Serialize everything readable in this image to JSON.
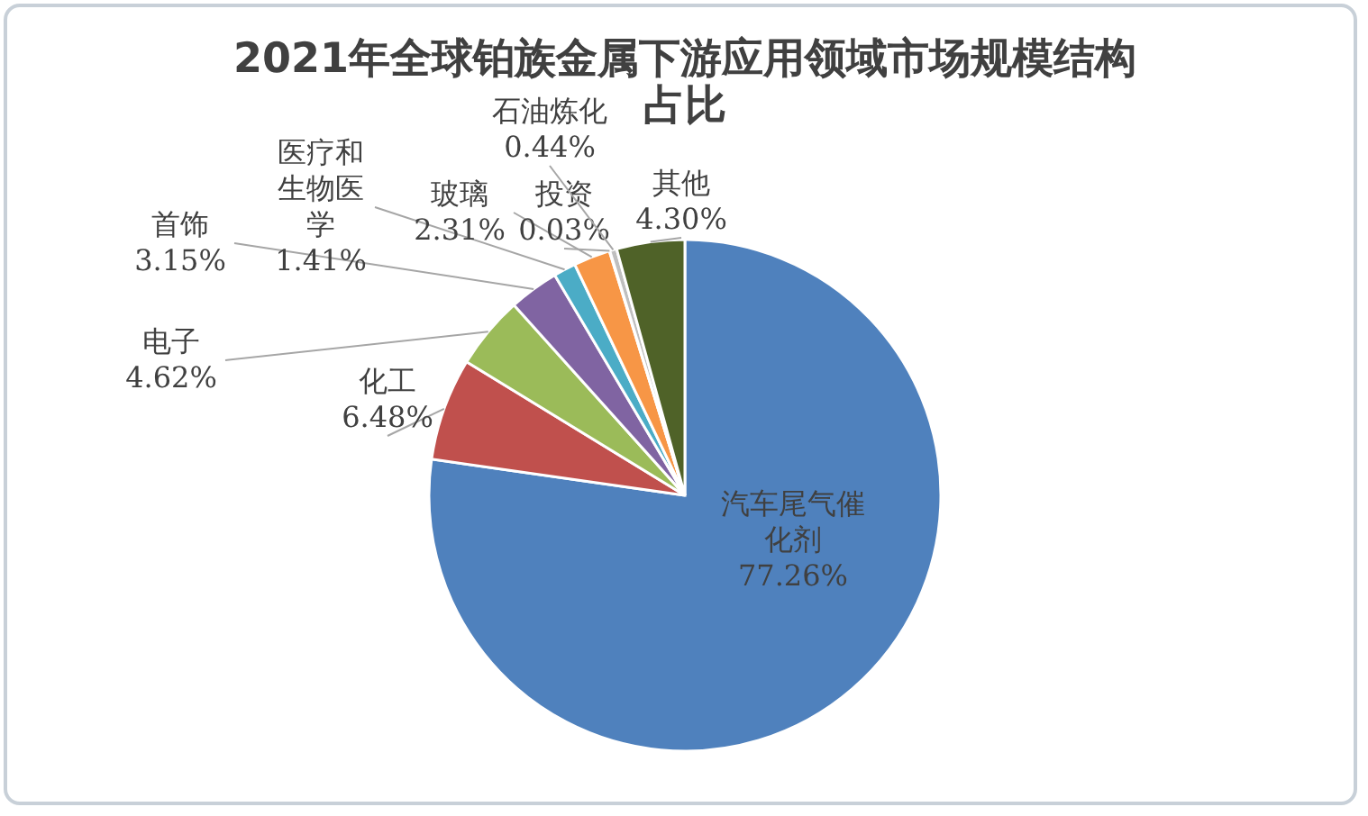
{
  "chart_data": {
    "type": "pie",
    "title": "2021年全球铂族金属下游应用领域市场规模结构占比",
    "categories": [
      "汽车尾气催化剂",
      "化工",
      "电子",
      "首饰",
      "医疗和生物医学",
      "玻璃",
      "投资",
      "石油炼化",
      "其他"
    ],
    "values": [
      77.26,
      6.48,
      4.62,
      3.15,
      1.41,
      2.31,
      0.03,
      0.44,
      4.3
    ],
    "colors": [
      "#4f81bd",
      "#c0504d",
      "#9bbb59",
      "#8064a2",
      "#4bacc6",
      "#f79646",
      "#7f7f7f",
      "#bfbfbf",
      "#4f6228"
    ],
    "value_labels": [
      "77.26%",
      "6.48%",
      "4.62%",
      "3.15%",
      "1.41%",
      "2.31%",
      "0.03%",
      "0.44%",
      "4.30%"
    ]
  }
}
